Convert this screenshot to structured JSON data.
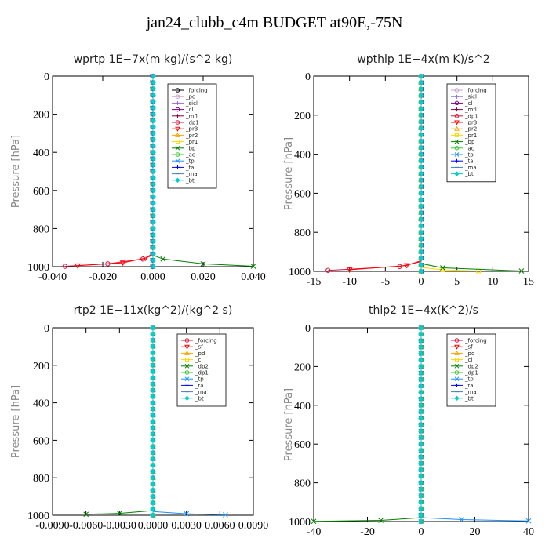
{
  "page": {
    "title": "jan24_clubb_c4m  BUDGET at90E,-75N"
  },
  "chart_data": [
    {
      "type": "line",
      "title": "wprtp  1E−7x(m kg)/(s^2 kg)",
      "ylabel": "Pressure [hPa]",
      "xlim": [
        -0.04,
        0.04
      ],
      "ylim": [
        1000,
        0
      ],
      "xticks": [
        "-0.040",
        "-0.020",
        "0.000",
        "0.020",
        "0.040"
      ],
      "xtick_values": [
        -0.04,
        -0.02,
        0,
        0.02,
        0.04
      ],
      "yticks": [
        "0",
        "200",
        "400",
        "600",
        "800",
        "1000"
      ],
      "ytick_values": [
        0,
        200,
        400,
        600,
        800,
        1000
      ],
      "legend_position": "top-right",
      "series": [
        {
          "name": "_forcing",
          "color": "#000000",
          "marker": "o",
          "points": [
            [
              0,
              0
            ],
            [
              0,
              1000
            ]
          ]
        },
        {
          "name": "_pd",
          "color": "#c8a2c8",
          "marker": "o",
          "points": [
            [
              0,
              0
            ],
            [
              0,
              1000
            ]
          ]
        },
        {
          "name": "_sicl",
          "color": "#9370db",
          "marker": "+",
          "points": [
            [
              0,
              0
            ],
            [
              0,
              1000
            ]
          ]
        },
        {
          "name": "_cl",
          "color": "#800080",
          "marker": "o",
          "points": [
            [
              0,
              0
            ],
            [
              0,
              1000
            ]
          ]
        },
        {
          "name": "_mfl",
          "color": "#8b0045",
          "marker": "+",
          "points": [
            [
              0,
              0
            ],
            [
              0,
              1000
            ]
          ]
        },
        {
          "name": "_dp1",
          "color": "#dc143c",
          "marker": "o",
          "points": [
            [
              0,
              0
            ],
            [
              0,
              940
            ],
            [
              -0.004,
              960
            ],
            [
              -0.018,
              985
            ],
            [
              -0.035,
              998
            ]
          ]
        },
        {
          "name": "_pr3",
          "color": "#ff0000",
          "marker": "v",
          "points": [
            [
              0,
              0
            ],
            [
              0,
              930
            ],
            [
              -0.003,
              955
            ],
            [
              -0.012,
              980
            ],
            [
              -0.03,
              995
            ]
          ]
        },
        {
          "name": "_pr2",
          "color": "#ffa500",
          "marker": "^",
          "points": [
            [
              0,
              0
            ],
            [
              0,
              1000
            ]
          ]
        },
        {
          "name": "_pr1",
          "color": "#ffd700",
          "marker": "s",
          "points": [
            [
              0,
              0
            ],
            [
              0,
              1000
            ]
          ]
        },
        {
          "name": "_bp",
          "color": "#008000",
          "marker": "x",
          "points": [
            [
              0,
              0
            ],
            [
              0,
              940
            ],
            [
              0.004,
              960
            ],
            [
              0.02,
              985
            ],
            [
              0.04,
              998
            ]
          ]
        },
        {
          "name": "_ac",
          "color": "#32cd32",
          "marker": "o",
          "points": [
            [
              0,
              0
            ],
            [
              0,
              1000
            ]
          ]
        },
        {
          "name": "_tp",
          "color": "#1e90ff",
          "marker": "x",
          "points": [
            [
              0,
              0
            ],
            [
              0,
              1000
            ]
          ]
        },
        {
          "name": "_ta",
          "color": "#0000ff",
          "marker": "+",
          "points": [
            [
              0,
              0
            ],
            [
              0,
              1000
            ]
          ]
        },
        {
          "name": "_ma",
          "color": "#4682b4",
          "marker": "-",
          "points": [
            [
              0,
              0
            ],
            [
              0,
              1000
            ]
          ]
        },
        {
          "name": "_bt",
          "color": "#00ced1",
          "marker": "D",
          "points": [
            [
              0,
              0
            ],
            [
              0,
              1000
            ]
          ]
        }
      ]
    },
    {
      "type": "line",
      "title": "wpthlp  1E−4x(m K)/s^2",
      "ylabel": "Pressure [hPa]",
      "xlim": [
        -15,
        15
      ],
      "ylim": [
        1000,
        0
      ],
      "xticks": [
        "-15",
        "-10",
        "-5",
        "0",
        "5",
        "10",
        "15"
      ],
      "xtick_values": [
        -15,
        -10,
        -5,
        0,
        5,
        10,
        15
      ],
      "yticks": [
        "0",
        "200",
        "400",
        "600",
        "800",
        "1000"
      ],
      "ytick_values": [
        0,
        200,
        400,
        600,
        800,
        1000
      ],
      "legend_position": "top-right",
      "series": [
        {
          "name": "_forcing",
          "color": "#c8a2c8",
          "marker": "o",
          "points": [
            [
              0,
              0
            ],
            [
              0,
              1000
            ]
          ]
        },
        {
          "name": "_sicl",
          "color": "#9370db",
          "marker": "+",
          "points": [
            [
              0,
              0
            ],
            [
              0,
              1000
            ]
          ]
        },
        {
          "name": "_cl",
          "color": "#800080",
          "marker": "o",
          "points": [
            [
              0,
              0
            ],
            [
              0,
              1000
            ]
          ]
        },
        {
          "name": "_mfl",
          "color": "#8b0045",
          "marker": "+",
          "points": [
            [
              0,
              0
            ],
            [
              0,
              1000
            ]
          ]
        },
        {
          "name": "_dp1",
          "color": "#dc143c",
          "marker": "o",
          "points": [
            [
              0,
              0
            ],
            [
              0,
              950
            ],
            [
              -3,
              975
            ],
            [
              -13,
              995
            ]
          ]
        },
        {
          "name": "_pr3",
          "color": "#ff0000",
          "marker": "v",
          "points": [
            [
              0,
              0
            ],
            [
              0,
              945
            ],
            [
              -2,
              970
            ],
            [
              -10,
              992
            ]
          ]
        },
        {
          "name": "_pr2",
          "color": "#ffa500",
          "marker": "^",
          "points": [
            [
              0,
              0
            ],
            [
              0,
              1000
            ]
          ]
        },
        {
          "name": "_pr1",
          "color": "#ffd700",
          "marker": "s",
          "points": [
            [
              0,
              0
            ],
            [
              0,
              980
            ],
            [
              3,
              992
            ],
            [
              8,
              998
            ]
          ]
        },
        {
          "name": "_bp",
          "color": "#008000",
          "marker": "x",
          "points": [
            [
              0,
              0
            ],
            [
              0,
              960
            ],
            [
              3,
              982
            ],
            [
              14,
              998
            ]
          ]
        },
        {
          "name": "_ac",
          "color": "#32cd32",
          "marker": "o",
          "points": [
            [
              0,
              0
            ],
            [
              0,
              1000
            ]
          ]
        },
        {
          "name": "_tp",
          "color": "#1e90ff",
          "marker": "x",
          "points": [
            [
              0,
              0
            ],
            [
              0,
              1000
            ]
          ]
        },
        {
          "name": "_ta",
          "color": "#0000ff",
          "marker": "+",
          "points": [
            [
              0,
              0
            ],
            [
              0,
              1000
            ]
          ]
        },
        {
          "name": "_ma",
          "color": "#4682b4",
          "marker": "-",
          "points": [
            [
              0,
              0
            ],
            [
              0,
              1000
            ]
          ]
        },
        {
          "name": "_bt",
          "color": "#00ced1",
          "marker": "D",
          "points": [
            [
              0,
              0
            ],
            [
              0,
              1000
            ]
          ]
        }
      ]
    },
    {
      "type": "line",
      "title": "rtp2  1E−11x(kg^2)/(kg^2 s)",
      "ylabel": "Pressure [hPa]",
      "xlim": [
        -0.009,
        0.009
      ],
      "ylim": [
        1000,
        0
      ],
      "xticks": [
        "-0.0090",
        "-0.0060",
        "-0.0030",
        "0.0000",
        "0.0030",
        "0.0060",
        "0.0090"
      ],
      "xtick_values": [
        -0.009,
        -0.006,
        -0.003,
        0,
        0.003,
        0.006,
        0.009
      ],
      "yticks": [
        "0",
        "200",
        "400",
        "600",
        "800",
        "1000"
      ],
      "ytick_values": [
        0,
        200,
        400,
        600,
        800,
        1000
      ],
      "legend_position": "top-right",
      "series": [
        {
          "name": "_forcing",
          "color": "#dc143c",
          "marker": "o",
          "points": [
            [
              0,
              0
            ],
            [
              0,
              1000
            ]
          ]
        },
        {
          "name": "_sf",
          "color": "#ff0000",
          "marker": "v",
          "points": [
            [
              0,
              0
            ],
            [
              0,
              1000
            ]
          ]
        },
        {
          "name": "_pd",
          "color": "#ffa500",
          "marker": "^",
          "points": [
            [
              0,
              0
            ],
            [
              0,
              1000
            ]
          ]
        },
        {
          "name": "_cl",
          "color": "#ffd700",
          "marker": "s",
          "points": [
            [
              0,
              0
            ],
            [
              0,
              1000
            ]
          ]
        },
        {
          "name": "_dp2",
          "color": "#008000",
          "marker": "x",
          "points": [
            [
              0,
              0
            ],
            [
              0,
              975
            ],
            [
              -0.003,
              990
            ],
            [
              -0.006,
              995
            ]
          ]
        },
        {
          "name": "_dp1",
          "color": "#32cd32",
          "marker": "o",
          "points": [
            [
              0,
              0
            ],
            [
              0,
              1000
            ]
          ]
        },
        {
          "name": "_tp",
          "color": "#1e90ff",
          "marker": "x",
          "points": [
            [
              0,
              0
            ],
            [
              0,
              980
            ],
            [
              0.003,
              992
            ],
            [
              0.0065,
              998
            ]
          ]
        },
        {
          "name": "_ta",
          "color": "#0000ff",
          "marker": "+",
          "points": [
            [
              0,
              0
            ],
            [
              0,
              1000
            ]
          ]
        },
        {
          "name": "_ma",
          "color": "#4682b4",
          "marker": "-",
          "points": [
            [
              0,
              0
            ],
            [
              0,
              1000
            ]
          ]
        },
        {
          "name": "_bt",
          "color": "#00ced1",
          "marker": "D",
          "points": [
            [
              0,
              0
            ],
            [
              0,
              1000
            ]
          ]
        }
      ]
    },
    {
      "type": "line",
      "title": "thlp2  1E−4x(K^2)/s",
      "ylabel": "Pressure [hPa]",
      "xlim": [
        -40,
        40
      ],
      "ylim": [
        1000,
        0
      ],
      "xticks": [
        "-40",
        "-20",
        "0",
        "20",
        "40"
      ],
      "xtick_values": [
        -40,
        -20,
        0,
        20,
        40
      ],
      "yticks": [
        "0",
        "200",
        "400",
        "600",
        "800",
        "1000"
      ],
      "ytick_values": [
        0,
        200,
        400,
        600,
        800,
        1000
      ],
      "legend_position": "top-right",
      "series": [
        {
          "name": "_forcing",
          "color": "#dc143c",
          "marker": "o",
          "points": [
            [
              0,
              0
            ],
            [
              0,
              1000
            ]
          ]
        },
        {
          "name": "_sf",
          "color": "#ff0000",
          "marker": "v",
          "points": [
            [
              0,
              0
            ],
            [
              0,
              1000
            ]
          ]
        },
        {
          "name": "_pd",
          "color": "#ffa500",
          "marker": "^",
          "points": [
            [
              0,
              0
            ],
            [
              0,
              1000
            ]
          ]
        },
        {
          "name": "_cl",
          "color": "#ffd700",
          "marker": "s",
          "points": [
            [
              0,
              0
            ],
            [
              0,
              1000
            ]
          ]
        },
        {
          "name": "_dp2",
          "color": "#008000",
          "marker": "x",
          "points": [
            [
              0,
              0
            ],
            [
              0,
              980
            ],
            [
              -15,
              994
            ],
            [
              -40,
              999
            ]
          ]
        },
        {
          "name": "_dp1",
          "color": "#32cd32",
          "marker": "o",
          "points": [
            [
              0,
              0
            ],
            [
              0,
              1000
            ]
          ]
        },
        {
          "name": "_tp",
          "color": "#1e90ff",
          "marker": "x",
          "points": [
            [
              0,
              0
            ],
            [
              0,
              980
            ],
            [
              15,
              990
            ],
            [
              40,
              997
            ]
          ]
        },
        {
          "name": "_ta",
          "color": "#0000ff",
          "marker": "+",
          "points": [
            [
              0,
              0
            ],
            [
              0,
              1000
            ]
          ]
        },
        {
          "name": "_ma",
          "color": "#4682b4",
          "marker": "-",
          "points": [
            [
              0,
              0
            ],
            [
              0,
              1000
            ]
          ]
        },
        {
          "name": "_bt",
          "color": "#00ced1",
          "marker": "D",
          "points": [
            [
              0,
              0
            ],
            [
              0,
              1000
            ]
          ]
        }
      ]
    }
  ]
}
